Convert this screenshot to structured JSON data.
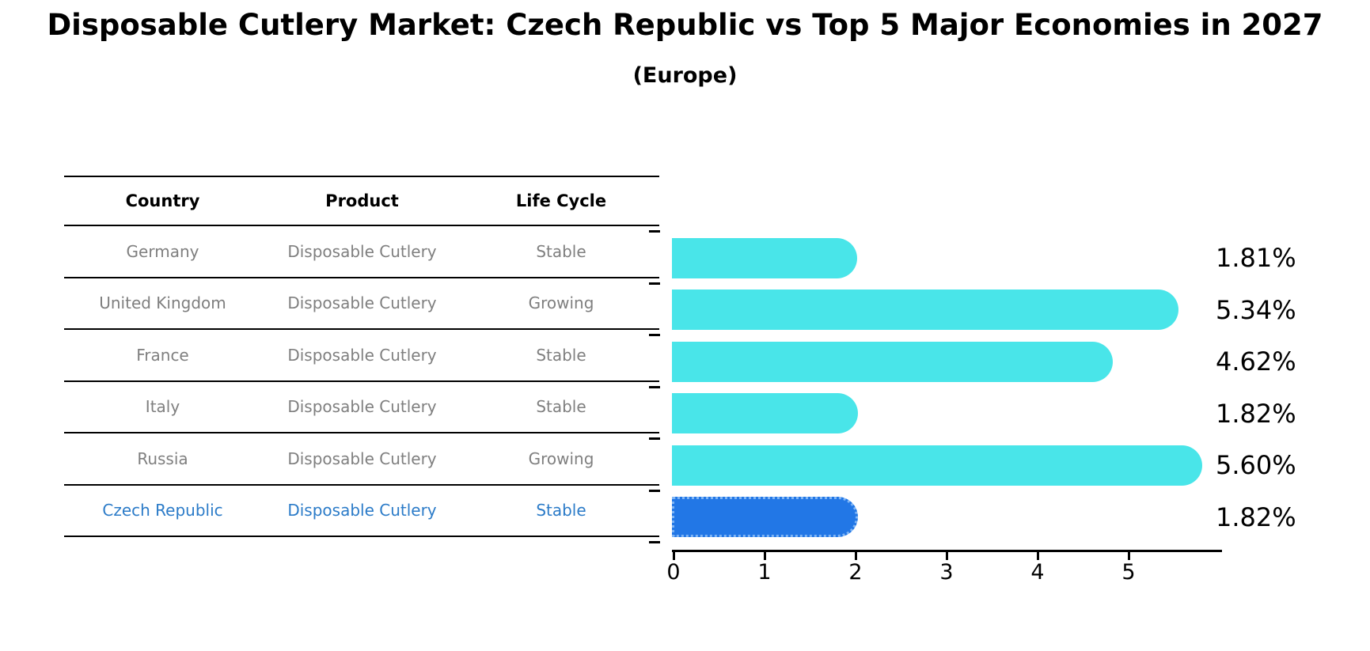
{
  "title": "Disposable Cutlery Market: Czech Republic vs Top 5 Major Economies in 2027",
  "subtitle": "(Europe)",
  "table": {
    "headers": [
      "Country",
      "Product",
      "Life Cycle"
    ],
    "rows": [
      {
        "country": "Germany",
        "product": "Disposable Cutlery",
        "life_cycle": "Stable",
        "highlight": false
      },
      {
        "country": "United Kingdom",
        "product": "Disposable Cutlery",
        "life_cycle": "Growing",
        "highlight": false
      },
      {
        "country": "France",
        "product": "Disposable Cutlery",
        "life_cycle": "Stable",
        "highlight": false
      },
      {
        "country": "Italy",
        "product": "Disposable Cutlery",
        "life_cycle": "Stable",
        "highlight": false
      },
      {
        "country": "Russia",
        "product": "Disposable Cutlery",
        "life_cycle": "Growing",
        "highlight": false
      },
      {
        "country": "Czech Republic",
        "product": "Disposable Cutlery",
        "life_cycle": "Stable",
        "highlight": true
      }
    ]
  },
  "chart_data": {
    "type": "bar",
    "orientation": "horizontal",
    "title": "Disposable Cutlery Market: Czech Republic vs Top 5 Major Economies in 2027 (Europe)",
    "categories": [
      "Germany",
      "United Kingdom",
      "France",
      "Italy",
      "Russia",
      "Czech Republic"
    ],
    "values": [
      1.81,
      5.34,
      4.62,
      1.82,
      5.6,
      1.82
    ],
    "value_labels": [
      "1.81%",
      "5.34%",
      "4.62%",
      "1.82%",
      "5.60%",
      "1.82%"
    ],
    "xticks": [
      "0",
      "1",
      "2",
      "3",
      "4",
      "5"
    ],
    "xlim": [
      0,
      6
    ],
    "grid": false,
    "legend": "none",
    "highlight_index": 5
  },
  "colors": {
    "bar": "#49e5e9",
    "highlight_bar": "#2277e6",
    "highlight_bar_edge": "#7fb5f5",
    "highlight_text": "#2b7bc8",
    "row_text": "#7f7f7f",
    "header_text": "#000000",
    "axis": "#000000"
  }
}
